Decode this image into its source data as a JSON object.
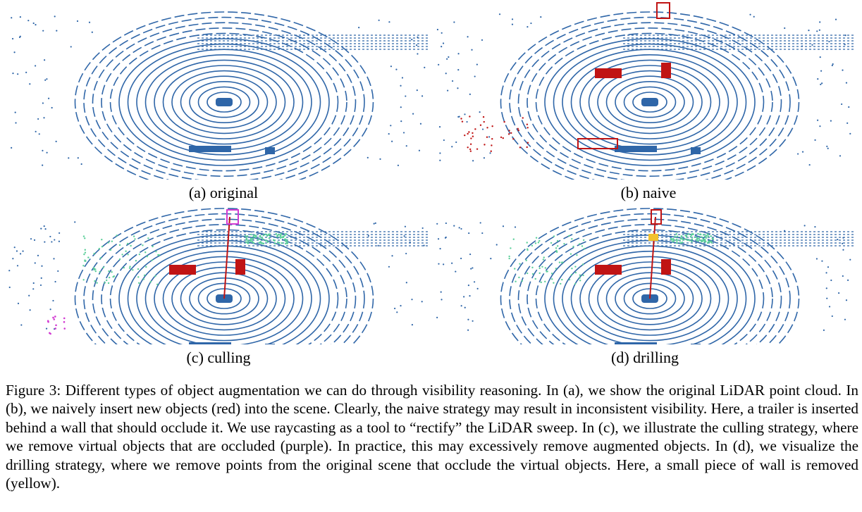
{
  "colors": {
    "scan": "#2f66a8",
    "inserted": "#c01414",
    "culled": "#d23bd2",
    "visible_changed": "#5ccf9a",
    "removed": "#f2c12e"
  },
  "panels": [
    {
      "id": "a",
      "label": "(a) original"
    },
    {
      "id": "b",
      "label": "(b) naive"
    },
    {
      "id": "c",
      "label": "(c) culling"
    },
    {
      "id": "d",
      "label": "(d) drilling"
    }
  ],
  "caption": "Figure 3: Different types of object augmentation we can do through visibility reasoning. In (a), we show the original LiDAR point cloud. In (b), we naively insert new objects (red) into the scene. Clearly, the naive strategy may result in inconsistent visibility. Here, a trailer is inserted behind a wall that should occlude it. We use raycasting as a tool to “rectify” the LiDAR sweep. In (c), we illustrate the culling strategy, where we remove virtual objects that are occluded (purple). In practice, this may excessively remove augmented objects. In (d), we visualize the drilling strategy, where we remove points from the original scene that occlude the virtual objects. Here, a small piece of wall is removed (yellow)."
}
